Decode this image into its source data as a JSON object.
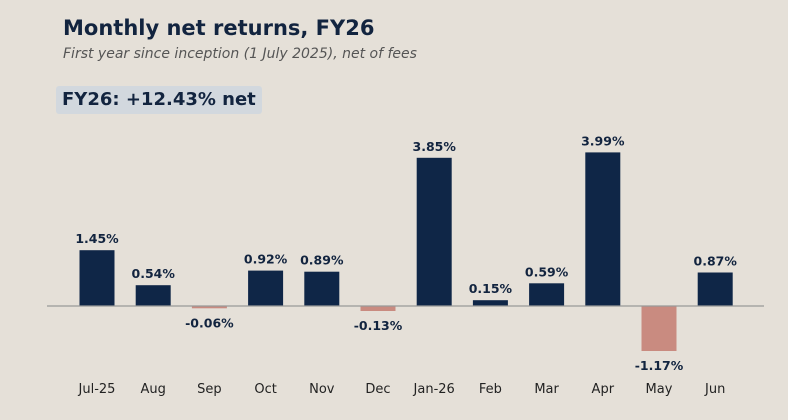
{
  "title": "Monthly net returns, FY26",
  "subtitle": "First year since inception (1 July 2025), net of fees",
  "callout": "FY26: +12.43% net",
  "colors": {
    "positive": "#0f2647",
    "negative": "#c98b80",
    "label": "#12243f",
    "axis": "#999999",
    "tick_text": "#222222"
  },
  "chart_data": {
    "type": "bar",
    "categories": [
      "Jul-25",
      "Aug",
      "Sep",
      "Oct",
      "Nov",
      "Dec",
      "Jan-26",
      "Feb",
      "Mar",
      "Apr",
      "May",
      "Jun"
    ],
    "values": [
      1.45,
      0.54,
      -0.06,
      0.92,
      0.89,
      -0.13,
      3.85,
      0.15,
      0.59,
      3.99,
      -1.17,
      0.87
    ],
    "data_labels": [
      "1.45%",
      "0.54%",
      "-0.06%",
      "0.92%",
      "0.89%",
      "-0.13%",
      "3.85%",
      "0.15%",
      "0.59%",
      "3.99%",
      "-1.17%",
      "0.87%"
    ],
    "xlabel": "",
    "ylabel": "",
    "ylim": [
      -1.7,
      4.6
    ],
    "grid": false,
    "legend": "none"
  }
}
